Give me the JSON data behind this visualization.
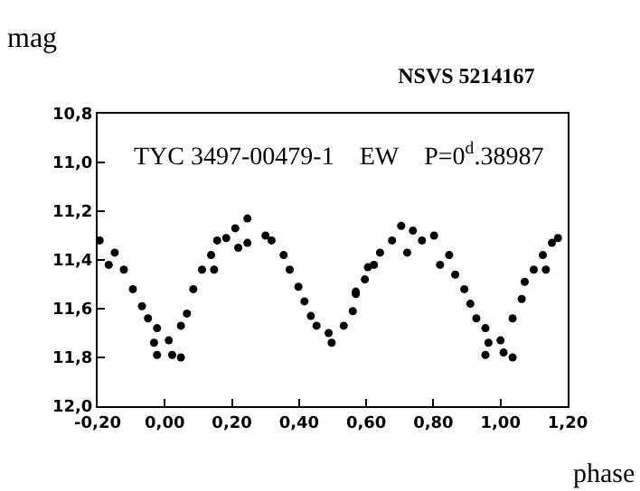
{
  "chart_data": {
    "type": "scatter",
    "title": "NSVS 5214167",
    "xlabel": "phase",
    "ylabel": "mag",
    "annotations": [
      "TYC 3497-00479-1    EW    P=0$^{d}$.38987"
    ],
    "x": [
      -0.194,
      -0.167,
      -0.149,
      -0.122,
      -0.095,
      -0.068,
      -0.05,
      -0.032,
      -0.023,
      -0.023,
      0.012,
      0.022,
      0.048,
      0.048,
      0.066,
      0.085,
      0.111,
      0.138,
      0.147,
      0.156,
      0.183,
      0.21,
      0.219,
      0.246,
      0.246,
      0.3,
      0.318,
      0.354,
      0.372,
      0.398,
      0.416,
      0.435,
      0.452,
      0.488,
      0.497,
      0.533,
      0.56,
      0.569,
      0.569,
      0.596,
      0.605,
      0.623,
      0.641,
      0.677,
      0.704,
      0.722,
      0.739,
      0.766,
      0.802,
      0.82,
      0.847,
      0.865,
      0.892,
      0.91,
      0.928,
      0.955,
      0.955,
      0.964,
      1.0,
      1.009,
      1.036,
      1.036,
      1.063,
      1.072,
      1.099,
      1.126,
      1.135,
      1.153,
      1.171
    ],
    "values": [
      11.32,
      11.42,
      11.37,
      11.44,
      11.52,
      11.59,
      11.64,
      11.74,
      11.68,
      11.79,
      11.73,
      11.79,
      11.8,
      11.67,
      11.62,
      11.52,
      11.44,
      11.38,
      11.44,
      11.32,
      11.31,
      11.27,
      11.35,
      11.23,
      11.33,
      11.3,
      11.32,
      11.38,
      11.44,
      11.51,
      11.57,
      11.63,
      11.67,
      11.7,
      11.74,
      11.67,
      11.61,
      11.54,
      11.53,
      11.48,
      11.43,
      11.42,
      11.37,
      11.32,
      11.26,
      11.37,
      11.28,
      11.32,
      11.3,
      11.42,
      11.38,
      11.46,
      11.52,
      11.58,
      11.64,
      11.68,
      11.79,
      11.74,
      11.73,
      11.78,
      11.8,
      11.64,
      11.56,
      11.49,
      11.44,
      11.38,
      11.44,
      11.33,
      11.31
    ],
    "color": "#000000",
    "marker": "circle",
    "grid": false,
    "xlim": [
      -0.2,
      1.2
    ],
    "xticks": [
      {
        "value": -0.2,
        "label": "-0,20"
      },
      {
        "value": 0,
        "label": "0,00"
      },
      {
        "value": 0.2,
        "label": "0,20"
      },
      {
        "value": 0.4,
        "label": "0,40"
      },
      {
        "value": 0.6,
        "label": "0,60"
      },
      {
        "value": 0.8,
        "label": "0,80"
      },
      {
        "value": 1,
        "label": "1,00"
      },
      {
        "value": 1.2,
        "label": "1,20"
      }
    ],
    "ylim": [
      12.0,
      10.8
    ],
    "yticks": [
      {
        "value": 10.8,
        "label": "10,8"
      },
      {
        "value": 11,
        "label": "11,0"
      },
      {
        "value": 11.2,
        "label": "11,2"
      },
      {
        "value": 11.4,
        "label": "11,4"
      },
      {
        "value": 11.6,
        "label": "11,6"
      },
      {
        "value": 11.8,
        "label": "11,8"
      },
      {
        "value": 12,
        "label": "12,0"
      }
    ]
  }
}
